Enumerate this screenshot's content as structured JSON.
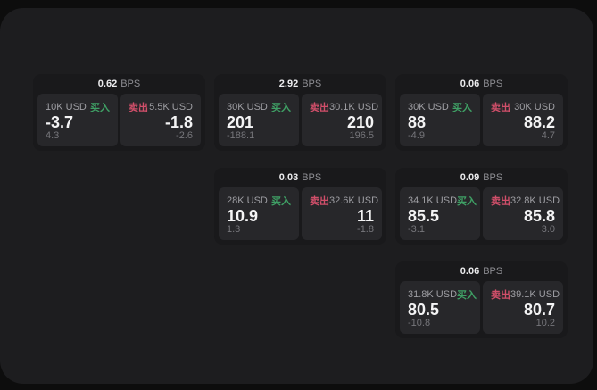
{
  "labels": {
    "bps_unit": "BPS",
    "buy": "买入",
    "sell": "卖出"
  },
  "colors": {
    "buy": "#3fa065",
    "sell": "#d14f6a"
  },
  "cards": [
    {
      "bps": "0.62",
      "buy": {
        "amount": "10K USD",
        "price": "-3.7",
        "change": "4.3"
      },
      "sell": {
        "amount": "5.5K USD",
        "price": "-1.8",
        "change": "-2.6"
      }
    },
    {
      "bps": "2.92",
      "buy": {
        "amount": "30K USD",
        "price": "201",
        "change": "-188.1"
      },
      "sell": {
        "amount": "30.1K USD",
        "price": "210",
        "change": "196.5"
      }
    },
    {
      "bps": "0.06",
      "buy": {
        "amount": "30K USD",
        "price": "88",
        "change": "-4.9"
      },
      "sell": {
        "amount": "30K USD",
        "price": "88.2",
        "change": "4.7"
      }
    },
    {
      "bps": "0.03",
      "buy": {
        "amount": "28K USD",
        "price": "10.9",
        "change": "1.3"
      },
      "sell": {
        "amount": "32.6K USD",
        "price": "11",
        "change": "-1.8"
      }
    },
    {
      "bps": "0.09",
      "buy": {
        "amount": "34.1K USD",
        "price": "85.5",
        "change": "-3.1"
      },
      "sell": {
        "amount": "32.8K USD",
        "price": "85.8",
        "change": "3.0"
      }
    },
    {
      "bps": "0.06",
      "buy": {
        "amount": "31.8K USD",
        "price": "80.5",
        "change": "-10.8"
      },
      "sell": {
        "amount": "39.1K USD",
        "price": "80.7",
        "change": "10.2"
      }
    }
  ]
}
